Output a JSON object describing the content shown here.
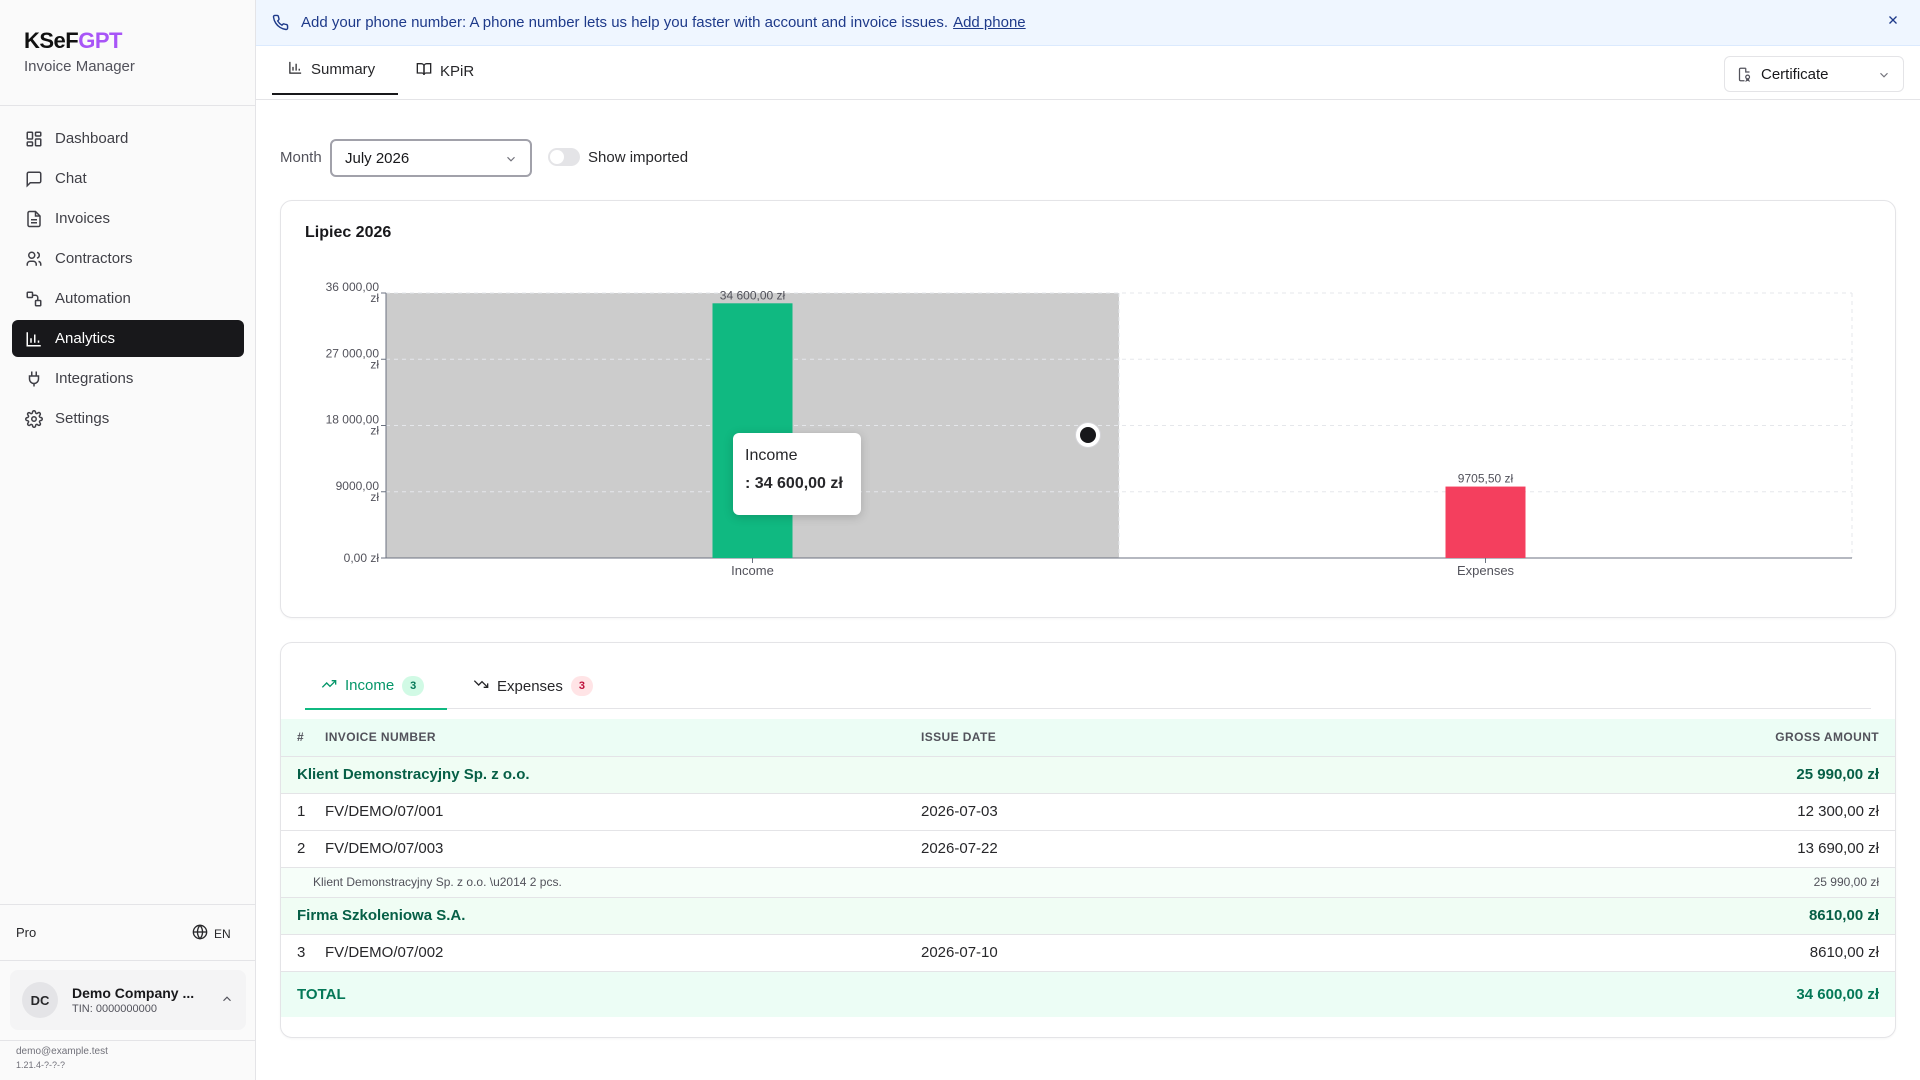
{
  "brand": {
    "name_a": "KSeF",
    "name_b": "GPT",
    "subtitle": "Invoice Manager"
  },
  "sidebar": {
    "items": [
      {
        "label": "Dashboard",
        "icon": "dashboard-icon"
      },
      {
        "label": "Chat",
        "icon": "chat-icon"
      },
      {
        "label": "Invoices",
        "icon": "invoice-icon"
      },
      {
        "label": "Contractors",
        "icon": "users-icon"
      },
      {
        "label": "Automation",
        "icon": "automation-icon"
      },
      {
        "label": "Analytics",
        "icon": "bar-chart-icon",
        "active": true
      },
      {
        "label": "Integrations",
        "icon": "plug-icon"
      },
      {
        "label": "Settings",
        "icon": "gear-icon"
      }
    ],
    "plan": "Pro",
    "language": "EN",
    "account": {
      "initials": "DC",
      "name": "Demo Company ...",
      "tin": "TIN: 0000000000"
    },
    "email": "demo@example.test",
    "version": "1.21.4-?-?-?"
  },
  "banner": {
    "text": "Add your phone number: A phone number lets us help you faster with account and invoice issues.",
    "link": "Add phone"
  },
  "tabs": {
    "summary": "Summary",
    "kpir": "KPiR"
  },
  "certificate": "Certificate",
  "filters": {
    "month_label": "Month",
    "month_value": "July 2026",
    "show_imported": "Show imported",
    "show_imported_on": false
  },
  "chart_title": "Lipiec 2026",
  "chart_data": {
    "type": "bar",
    "categories": [
      "Income",
      "Expenses"
    ],
    "values": [
      34600,
      9705.5
    ],
    "value_labels": [
      "34 600,00 zł",
      "9705,50 zł"
    ],
    "colors": [
      "#10b981",
      "#f43f5e"
    ],
    "ylim": [
      0,
      36000
    ],
    "yticks": [
      {
        "value": 0,
        "label": [
          "0,00 zł"
        ]
      },
      {
        "value": 9000,
        "label": [
          "9000,00",
          "zł"
        ]
      },
      {
        "value": 18000,
        "label": [
          "18 000,00",
          "zł"
        ]
      },
      {
        "value": 27000,
        "label": [
          "27 000,00",
          "zł"
        ]
      },
      {
        "value": 36000,
        "label": [
          "36 000,00",
          "zł"
        ]
      }
    ],
    "grid": true,
    "highlighted": "Income"
  },
  "tooltip": {
    "name": "Income",
    "value": ": 34 600,00 zł"
  },
  "table": {
    "tab_income": "Income",
    "tab_income_count": "3",
    "tab_expenses": "Expenses",
    "tab_expenses_count": "3",
    "headers": [
      "#",
      "INVOICE NUMBER",
      "ISSUE DATE",
      "GROSS AMOUNT"
    ],
    "groups": [
      {
        "name": "Klient Demonstracyjny Sp. z o.o.",
        "amount": "25 990,00 zł",
        "rows": [
          {
            "n": "1",
            "number": "FV/DEMO/07/001",
            "date": "2026-07-03",
            "amount": "12 300,00 zł"
          },
          {
            "n": "2",
            "number": "FV/DEMO/07/003",
            "date": "2026-07-22",
            "amount": "13 690,00 zł"
          }
        ],
        "subtotal_label": "Klient Demonstracyjny Sp. z o.o. \\u2014 2 pcs.",
        "subtotal_amount": "25 990,00 zł"
      },
      {
        "name": "Firma Szkoleniowa S.A.",
        "amount": "8610,00 zł",
        "rows": [
          {
            "n": "3",
            "number": "FV/DEMO/07/002",
            "date": "2026-07-10",
            "amount": "8610,00 zł"
          }
        ]
      }
    ],
    "total_label": "TOTAL",
    "total_amount": "34 600,00 zł"
  }
}
